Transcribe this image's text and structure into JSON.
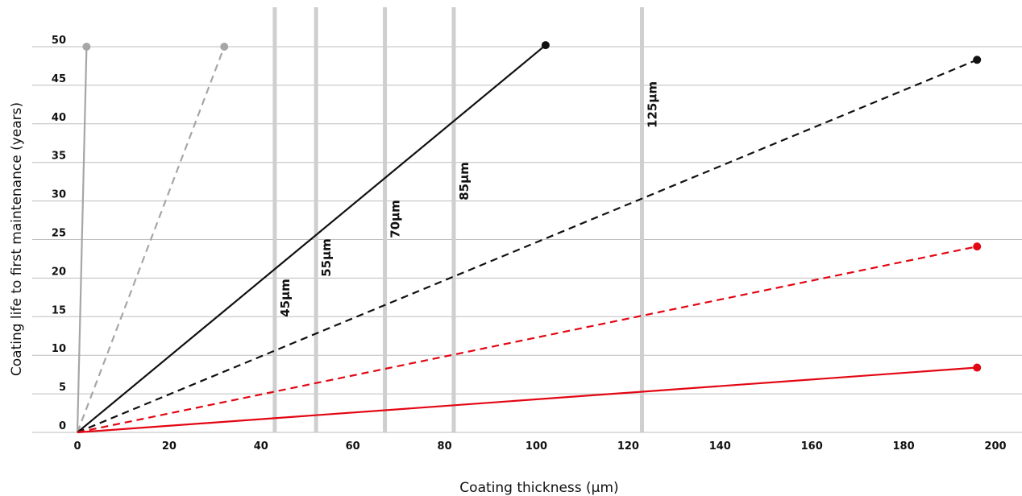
{
  "chart_data": {
    "type": "line",
    "title": "",
    "xlabel": "Coating thickness (µm)",
    "ylabel": "Coating life to first maintenance (years)",
    "xlim": [
      0,
      200
    ],
    "ylim": [
      0,
      50
    ],
    "x_ticks": [
      0,
      20,
      40,
      60,
      80,
      100,
      120,
      140,
      160,
      180,
      200
    ],
    "y_ticks": [
      0,
      5,
      10,
      15,
      20,
      25,
      30,
      35,
      40,
      45,
      50
    ],
    "grid": "horizontal",
    "reference_lines": [
      {
        "x": 43,
        "label": "45µm"
      },
      {
        "x": 52,
        "label": "55µm"
      },
      {
        "x": 67,
        "label": "70µm"
      },
      {
        "x": 82,
        "label": "85µm"
      },
      {
        "x": 123,
        "label": "125µm"
      }
    ],
    "series": [
      {
        "color": "#a6a6a6",
        "style": "solid",
        "points": [
          [
            0,
            0
          ],
          [
            2,
            50
          ]
        ]
      },
      {
        "color": "#a6a6a6",
        "style": "dashed",
        "points": [
          [
            0,
            0
          ],
          [
            32,
            50
          ]
        ]
      },
      {
        "color": "#111111",
        "style": "solid",
        "points": [
          [
            0,
            0
          ],
          [
            102,
            50.2
          ]
        ]
      },
      {
        "color": "#111111",
        "style": "dashed",
        "points": [
          [
            0,
            0
          ],
          [
            196,
            48.3
          ]
        ]
      },
      {
        "color": "#e30613",
        "style": "dashed",
        "points": [
          [
            0,
            0
          ],
          [
            196,
            24.1
          ]
        ]
      },
      {
        "color": "#e30613",
        "style": "solid",
        "points": [
          [
            0,
            0
          ],
          [
            196,
            8.4
          ]
        ]
      }
    ]
  }
}
